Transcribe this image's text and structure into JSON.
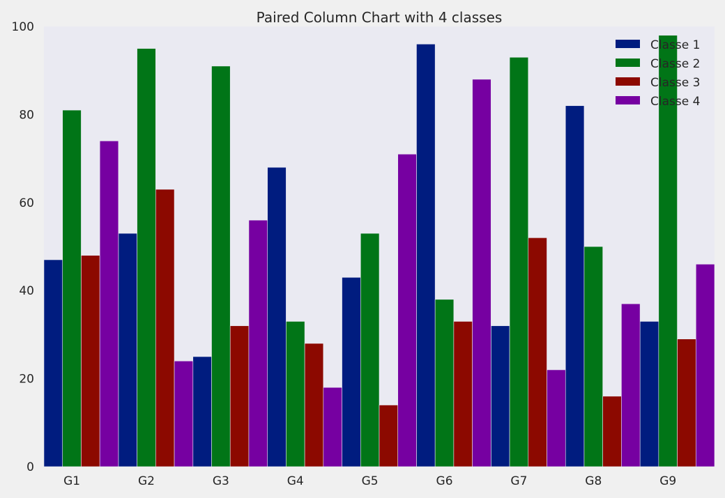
{
  "chart_data": {
    "type": "bar",
    "title": "Paired Column Chart with 4 classes",
    "categories": [
      "G1",
      "G2",
      "G3",
      "G4",
      "G5",
      "G6",
      "G7",
      "G8",
      "G9"
    ],
    "series": [
      {
        "name": "Classe 1",
        "color": "#001c7f",
        "values": [
          47,
          53,
          25,
          68,
          43,
          96,
          32,
          82,
          33
        ]
      },
      {
        "name": "Classe 2",
        "color": "#017517",
        "values": [
          81,
          95,
          91,
          33,
          53,
          38,
          93,
          50,
          98
        ]
      },
      {
        "name": "Classe 3",
        "color": "#8c0900",
        "values": [
          48,
          63,
          32,
          28,
          14,
          33,
          52,
          16,
          29
        ]
      },
      {
        "name": "Classe 4",
        "color": "#7600a1",
        "values": [
          74,
          24,
          56,
          18,
          71,
          88,
          22,
          37,
          46
        ]
      }
    ],
    "ylim": [
      0,
      100
    ],
    "yticks": [
      0,
      20,
      40,
      60,
      80,
      100
    ],
    "xlabel": "",
    "ylabel": "",
    "grid": false,
    "legend": "top-right",
    "background": "#eaeaf2"
  }
}
